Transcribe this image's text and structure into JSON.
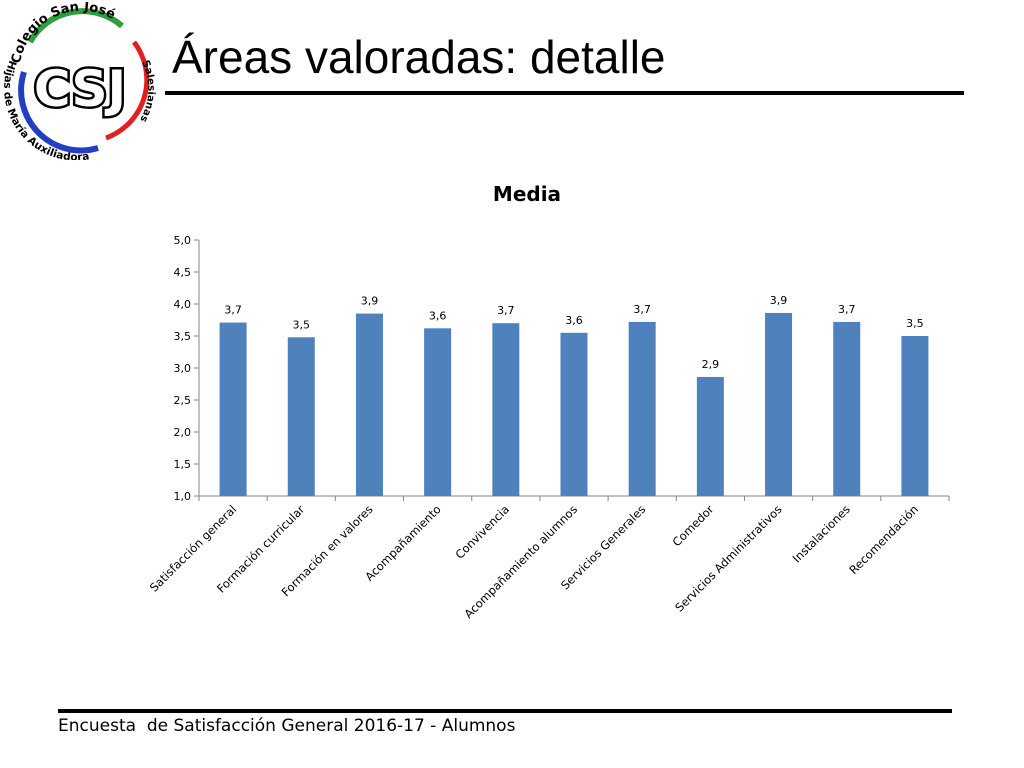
{
  "slide": {
    "title": "Áreas valoradas: detalle",
    "footer": "Encuesta  de Satisfacción General 2016-17 - Alumnos"
  },
  "logo": {
    "top_text": "Colegio San José",
    "monogram": "CSJ",
    "side_text": "Salesianas",
    "bottom_text": "Hijas de María Auxiliadora",
    "colors": {
      "green": "#2e9e3e",
      "red": "#e02020",
      "blue": "#2040c0"
    }
  },
  "chart_data": {
    "type": "bar",
    "title": "Media",
    "categories": [
      "Satisfacción general",
      "Formación curricular",
      "Formación en valores",
      "Acompañamiento",
      "Convivencia",
      "Acompañamiento alumnos",
      "Servicios Generales",
      "Comedor",
      "Servicios Administrativos",
      "Instalaciones",
      "Recomendación"
    ],
    "values": [
      3.71,
      3.48,
      3.85,
      3.62,
      3.7,
      3.55,
      3.72,
      2.86,
      3.86,
      3.72,
      3.5
    ],
    "data_labels": [
      "3,7",
      "3,5",
      "3,9",
      "3,6",
      "3,7",
      "3,6",
      "3,7",
      "2,9",
      "3,9",
      "3,7",
      "3,5"
    ],
    "ylim": [
      1.0,
      5.0
    ],
    "yticks": [
      "1,0",
      "1,5",
      "2,0",
      "2,5",
      "3,0",
      "3,5",
      "4,0",
      "4,5",
      "5,0"
    ],
    "bar_color": "#4f81bd",
    "grid": false,
    "legend": "none"
  }
}
